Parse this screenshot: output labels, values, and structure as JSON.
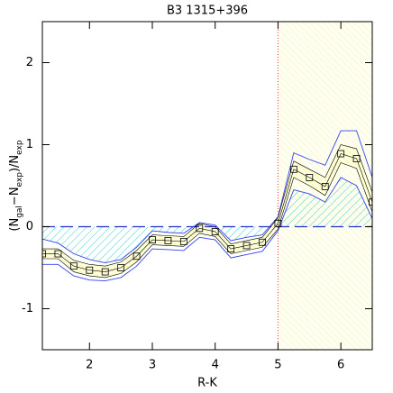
{
  "chart_data": {
    "type": "line",
    "title": "B3 1315+396",
    "xlabel": "R-K",
    "ylabel": [
      {
        "text": "(N"
      },
      {
        "text": "gal",
        "sub": true
      },
      {
        "text": "−N"
      },
      {
        "text": "exp",
        "sub": true
      },
      {
        "text": ")/N"
      },
      {
        "text": "exp",
        "sub": true
      }
    ],
    "x": [
      1.25,
      1.5,
      1.75,
      2,
      2.25,
      2.5,
      2.75,
      3,
      3.25,
      3.5,
      3.75,
      4,
      4.25,
      4.5,
      4.75,
      5,
      5.25,
      5.5,
      5.75,
      6,
      6.25,
      6.5
    ],
    "values": [
      -0.33,
      -0.33,
      -0.48,
      -0.53,
      -0.55,
      -0.5,
      -0.36,
      -0.16,
      -0.17,
      -0.18,
      -0.02,
      -0.06,
      -0.27,
      -0.23,
      -0.19,
      0.04,
      0.7,
      0.6,
      0.49,
      0.89,
      0.83,
      0.3
    ],
    "inner_upper": [
      -0.27,
      -0.27,
      -0.41,
      -0.46,
      -0.48,
      -0.43,
      -0.29,
      -0.1,
      -0.11,
      -0.12,
      0.04,
      0,
      -0.21,
      -0.17,
      -0.13,
      0.11,
      0.8,
      0.7,
      0.6,
      1.0,
      0.95,
      0.42
    ],
    "inner_lower": [
      -0.39,
      -0.39,
      -0.55,
      -0.6,
      -0.62,
      -0.57,
      -0.43,
      -0.22,
      -0.23,
      -0.24,
      -0.08,
      -0.12,
      -0.33,
      -0.29,
      -0.25,
      -0.03,
      0.6,
      0.5,
      0.38,
      0.78,
      0.71,
      0.18
    ],
    "upper": [
      -0.15,
      -0.2,
      -0.33,
      -0.4,
      -0.44,
      -0.4,
      -0.25,
      -0.05,
      -0.07,
      -0.08,
      0.05,
      0.02,
      -0.17,
      -0.13,
      -0.1,
      0.12,
      0.9,
      0.82,
      0.75,
      1.17,
      1.17,
      0.6
    ],
    "lower": [
      -0.46,
      -0.46,
      -0.6,
      -0.65,
      -0.66,
      -0.62,
      -0.48,
      -0.27,
      -0.28,
      -0.29,
      -0.13,
      -0.16,
      -0.38,
      -0.34,
      -0.3,
      -0.05,
      0.45,
      0.4,
      0.3,
      0.6,
      0.5,
      0.1
    ],
    "cut": 5,
    "baseline": 0,
    "colors": {
      "bound": "#3344ee",
      "inner": "#000000",
      "cut": "#ee3355",
      "baseline": "#2233cc"
    },
    "xlim": [
      1.25,
      6.5
    ],
    "ylim": [
      -1.5,
      2.5
    ],
    "xticks": [
      2,
      3,
      4,
      5,
      6
    ],
    "yticks": [
      -1,
      0,
      1,
      2
    ]
  }
}
